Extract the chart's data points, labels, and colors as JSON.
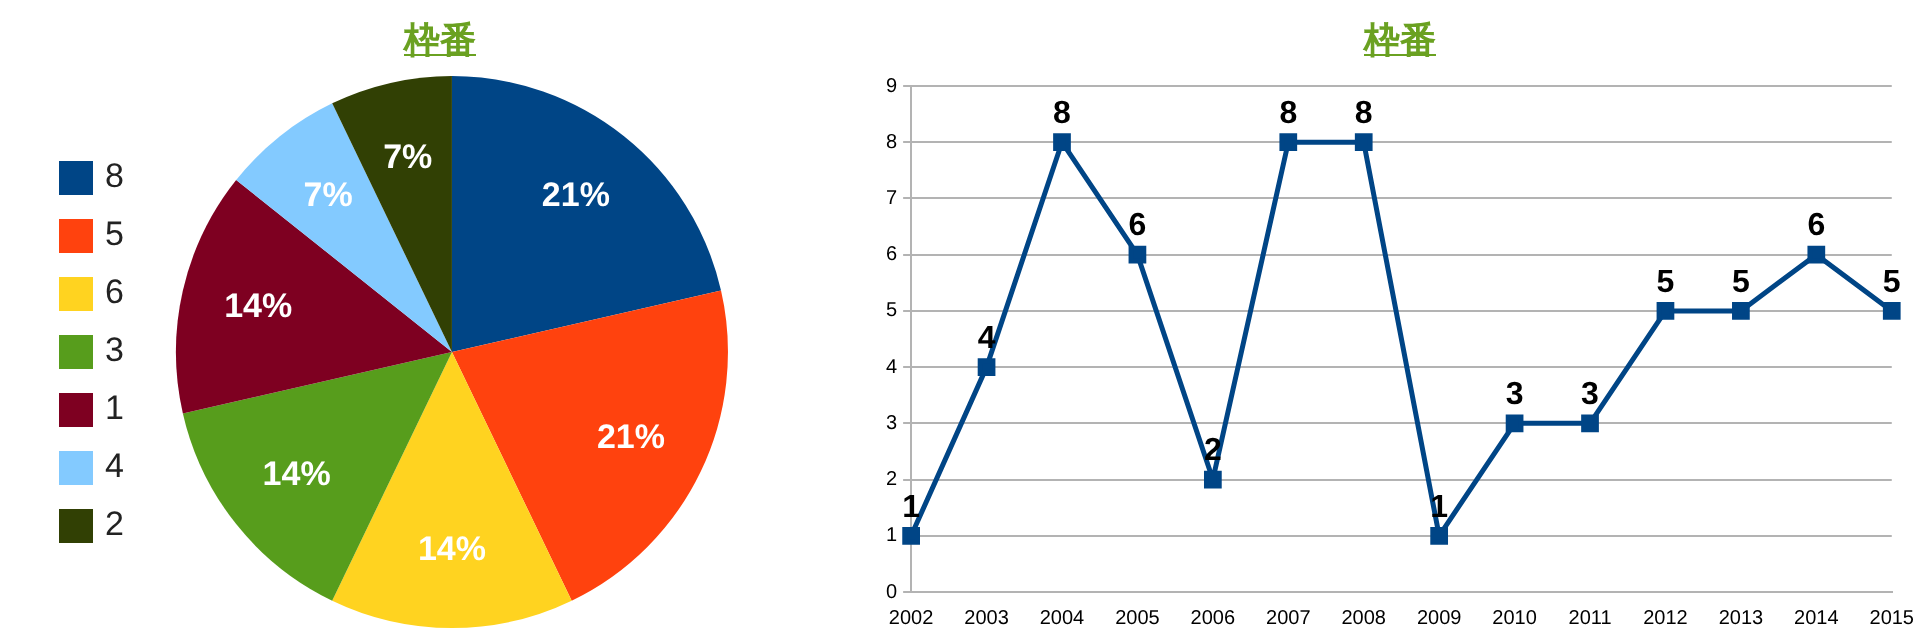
{
  "chart_data": [
    {
      "type": "pie",
      "title": "枠番",
      "categories": [
        "8",
        "5",
        "6",
        "3",
        "1",
        "4",
        "2"
      ],
      "values": [
        21,
        21,
        14,
        14,
        14,
        7,
        7
      ],
      "colors": [
        "#004586",
        "#ff420e",
        "#ffd320",
        "#579d1c",
        "#7e0021",
        "#83caff",
        "#314004"
      ],
      "value_labels": [
        "21%",
        "21%",
        "14%",
        "14%",
        "14%",
        "7%",
        "7%"
      ],
      "legend": "left"
    },
    {
      "type": "line",
      "title": "枠番",
      "categories": [
        "2002",
        "2003",
        "2004",
        "2005",
        "2006",
        "2007",
        "2008",
        "2009",
        "2010",
        "2011",
        "2012",
        "2013",
        "2014",
        "2015"
      ],
      "series": [
        {
          "color": "#004586",
          "values": [
            1,
            4,
            8,
            6,
            2,
            8,
            8,
            1,
            3,
            3,
            5,
            5,
            6,
            5
          ]
        }
      ],
      "ylim": [
        0,
        9
      ],
      "yticks": [
        0,
        1,
        2,
        3,
        4,
        5,
        6,
        7,
        8,
        9
      ],
      "grid": "y",
      "marker": "square",
      "data_labels": true,
      "legend": false
    }
  ]
}
